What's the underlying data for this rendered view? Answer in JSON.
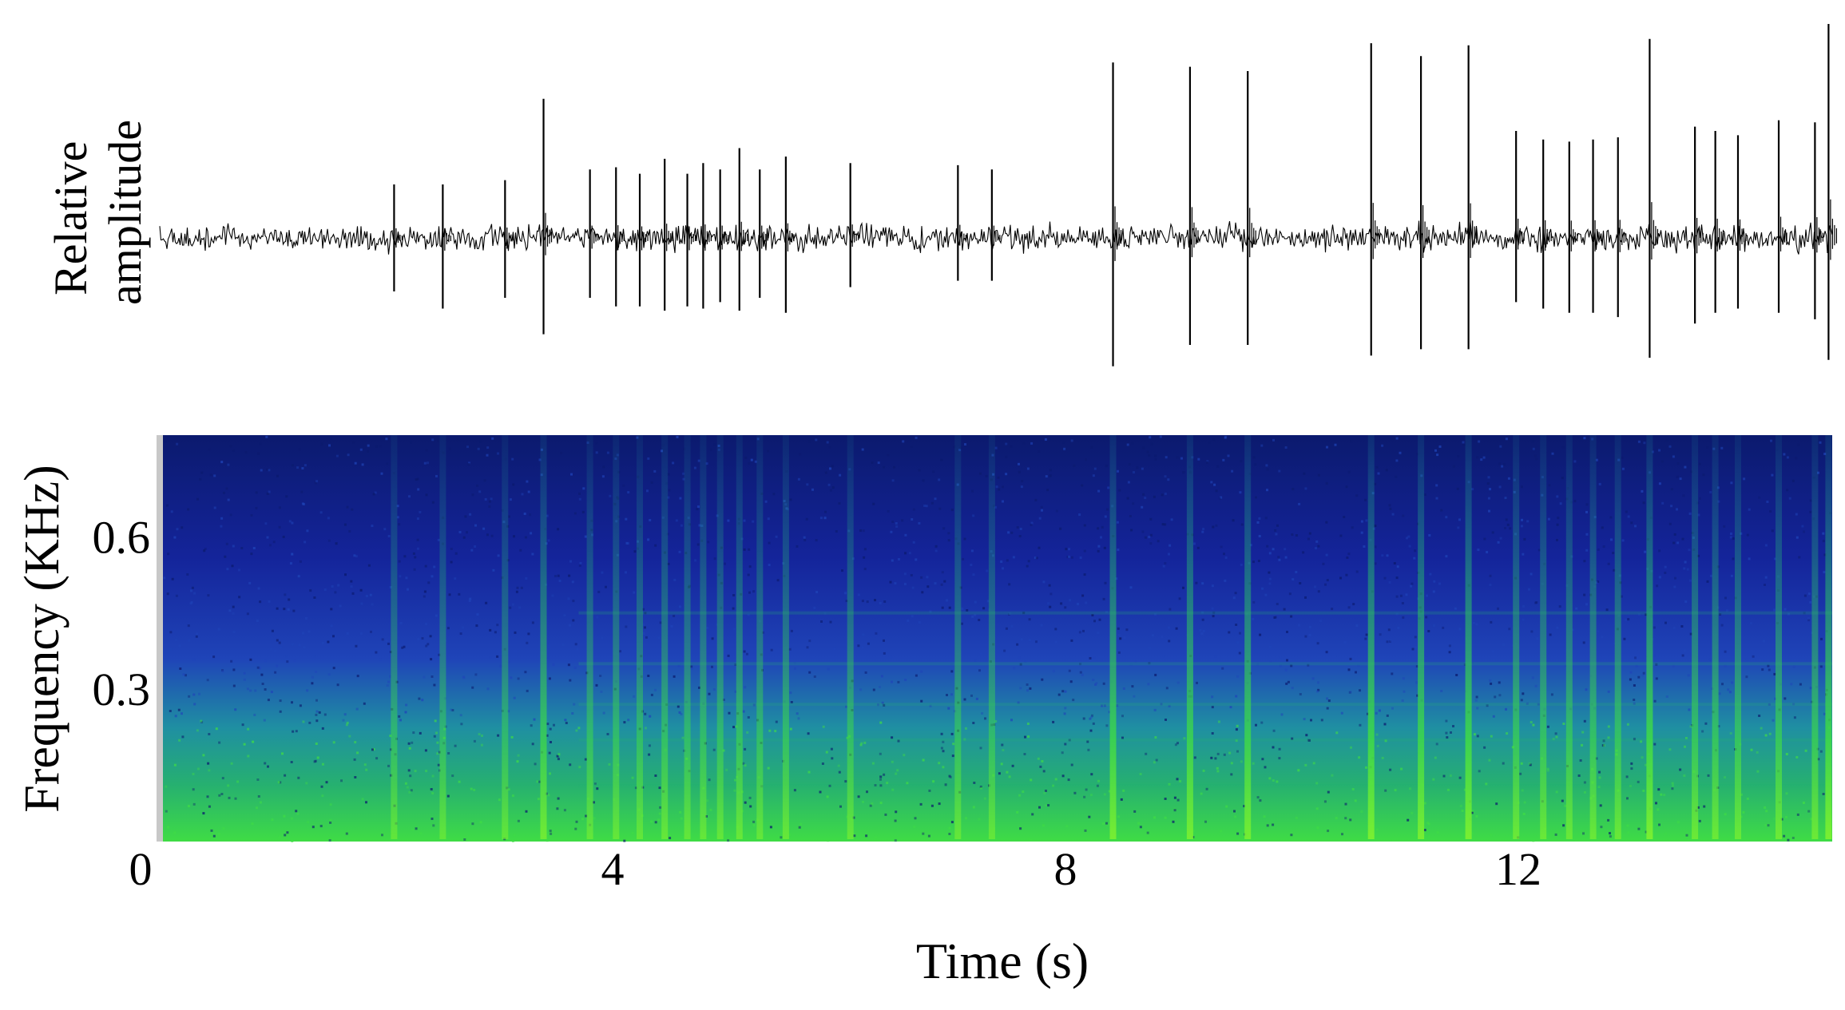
{
  "chart_data": [
    {
      "type": "line",
      "panel": "waveform",
      "ylabel_lines": [
        "Relative",
        "amplitude"
      ],
      "xlim": [
        0,
        14.8
      ],
      "baseline_noise_amplitude": 0.06,
      "pulses": [
        {
          "t": 2.07,
          "up": 0.25,
          "down": 0.25
        },
        {
          "t": 2.5,
          "up": 0.25,
          "down": 0.33
        },
        {
          "t": 3.05,
          "up": 0.27,
          "down": 0.28
        },
        {
          "t": 3.39,
          "up": 0.65,
          "down": 0.45
        },
        {
          "t": 3.8,
          "up": 0.32,
          "down": 0.28
        },
        {
          "t": 4.03,
          "up": 0.33,
          "down": 0.32
        },
        {
          "t": 4.24,
          "up": 0.3,
          "down": 0.32
        },
        {
          "t": 4.46,
          "up": 0.37,
          "down": 0.34
        },
        {
          "t": 4.66,
          "up": 0.3,
          "down": 0.32
        },
        {
          "t": 4.8,
          "up": 0.35,
          "down": 0.33
        },
        {
          "t": 4.95,
          "up": 0.32,
          "down": 0.3
        },
        {
          "t": 5.12,
          "up": 0.42,
          "down": 0.34
        },
        {
          "t": 5.3,
          "up": 0.32,
          "down": 0.28
        },
        {
          "t": 5.53,
          "up": 0.38,
          "down": 0.35
        },
        {
          "t": 6.1,
          "up": 0.35,
          "down": 0.23
        },
        {
          "t": 7.05,
          "up": 0.34,
          "down": 0.2
        },
        {
          "t": 7.35,
          "up": 0.32,
          "down": 0.2
        },
        {
          "t": 8.42,
          "up": 0.82,
          "down": 0.6
        },
        {
          "t": 9.1,
          "up": 0.8,
          "down": 0.5
        },
        {
          "t": 9.61,
          "up": 0.78,
          "down": 0.5
        },
        {
          "t": 10.7,
          "up": 0.91,
          "down": 0.55
        },
        {
          "t": 11.14,
          "up": 0.85,
          "down": 0.52
        },
        {
          "t": 11.56,
          "up": 0.9,
          "down": 0.52
        },
        {
          "t": 11.98,
          "up": 0.5,
          "down": 0.3
        },
        {
          "t": 12.22,
          "up": 0.46,
          "down": 0.33
        },
        {
          "t": 12.45,
          "up": 0.45,
          "down": 0.35
        },
        {
          "t": 12.66,
          "up": 0.46,
          "down": 0.35
        },
        {
          "t": 12.88,
          "up": 0.47,
          "down": 0.37
        },
        {
          "t": 13.16,
          "up": 0.93,
          "down": 0.56
        },
        {
          "t": 13.56,
          "up": 0.52,
          "down": 0.4
        },
        {
          "t": 13.74,
          "up": 0.5,
          "down": 0.35
        },
        {
          "t": 13.94,
          "up": 0.48,
          "down": 0.33
        },
        {
          "t": 14.3,
          "up": 0.55,
          "down": 0.35
        },
        {
          "t": 14.62,
          "up": 0.54,
          "down": 0.38
        },
        {
          "t": 14.74,
          "up": 1.0,
          "down": 0.57
        }
      ]
    },
    {
      "type": "heatmap",
      "panel": "spectrogram",
      "xlabel": "Time (s)",
      "ylabel": "Frequency (KHz)",
      "xlim": [
        0,
        14.8
      ],
      "ylim": [
        0,
        0.8
      ],
      "x_ticks": [
        "0",
        "4",
        "8",
        "12"
      ],
      "x_tick_values": [
        0,
        4,
        8,
        12
      ],
      "y_ticks": [
        "0.3",
        "0.6"
      ],
      "y_tick_values": [
        0.3,
        0.6
      ],
      "colormap": [
        "#0b1a6e",
        "#14249a",
        "#1f44b8",
        "#1f8fa2",
        "#26b070",
        "#3fdc45",
        "#7df030"
      ],
      "call_times": [
        2.07,
        2.5,
        3.05,
        3.39,
        3.8,
        4.03,
        4.24,
        4.46,
        4.66,
        4.8,
        4.95,
        5.12,
        5.3,
        5.53,
        6.1,
        7.05,
        7.35,
        8.42,
        9.1,
        9.61,
        10.7,
        11.14,
        11.56,
        11.98,
        12.22,
        12.45,
        12.66,
        12.88,
        13.16,
        13.56,
        13.74,
        13.94,
        14.3,
        14.62,
        14.74
      ],
      "harmonic_bands_khz": [
        0.11,
        0.2,
        0.27,
        0.35,
        0.45
      ]
    }
  ]
}
